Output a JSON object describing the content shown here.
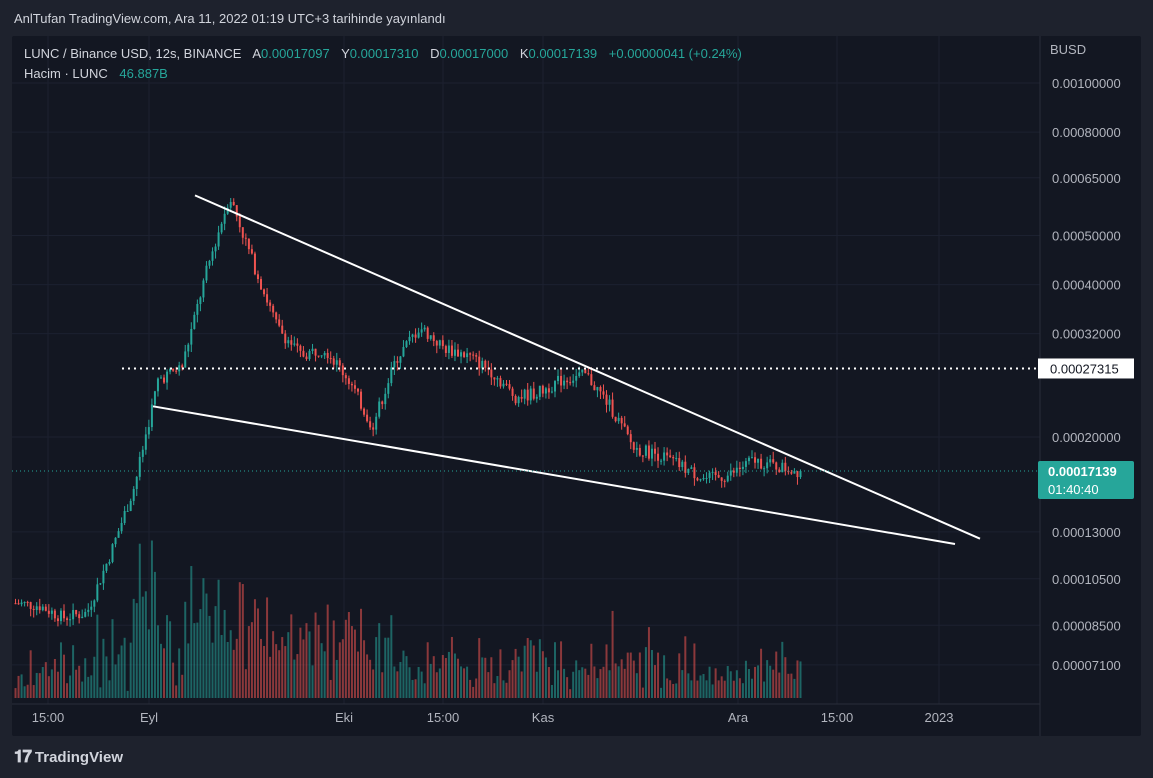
{
  "header": {
    "text": "AnlTufan TradingView.com, Ara 11, 2022 01:19 UTC+3 tarihinde yayınlandı"
  },
  "legend": {
    "symbol": "LUNC / Binance USD, 12s, BINANCE",
    "open_label": "A",
    "open": "0.00017097",
    "high_label": "Y",
    "high": "0.00017310",
    "low_label": "D",
    "low": "0.00017000",
    "close_label": "K",
    "close": "0.00017139",
    "change": "+0.00000041 (+0.24%)",
    "volume_label": "Hacim · LUNC",
    "volume": "46.887B"
  },
  "colors": {
    "up": "#26a69a",
    "down": "#ef5350",
    "background": "#131722",
    "line": "#ffffff"
  },
  "footer": {
    "logo_icon": "tradingview-logo-icon",
    "brand": "TradingView"
  },
  "chart_data": {
    "type": "candlestick",
    "axis_currency": "BUSD",
    "y_ticks": [
      "0.00100000",
      "0.00080000",
      "0.00065000",
      "0.00050000",
      "0.00040000",
      "0.00032000",
      "0.00020000",
      "0.00013000",
      "0.00010500",
      "0.00008500",
      "0.00007100"
    ],
    "y_scale": "log",
    "x_ticks": [
      "15:00",
      "Eyl",
      "Eki",
      "15:00",
      "Kas",
      "Ara",
      "15:00",
      "2023"
    ],
    "horizontal_line_label": "0.00027315",
    "last_price_label": "0.00017139",
    "countdown_label": "01:40:40",
    "close_path": [
      [
        "Ağu",
        9.4e-05
      ],
      [
        "Ağu",
        9.3e-05
      ],
      [
        "Ağu",
        8.8e-05
      ],
      [
        "Ağu",
        9e-05
      ],
      [
        "Eyl",
        0.000118
      ],
      [
        "Eyl",
        0.00016
      ],
      [
        "Eyl",
        0.00026
      ],
      [
        "Eyl",
        0.000275
      ],
      [
        "Eyl",
        0.00042
      ],
      [
        "Eyl",
        0.0006
      ],
      [
        "Eyl",
        0.00044
      ],
      [
        "Eyl",
        0.00033
      ],
      [
        "Eyl",
        0.00029
      ],
      [
        "Eyl",
        0.0003
      ],
      [
        "Eyl",
        0.00026
      ],
      [
        "Eyl",
        0.00021
      ],
      [
        "Eki",
        0.000285
      ],
      [
        "Eki",
        0.00033
      ],
      [
        "Eki",
        0.0003
      ],
      [
        "Eki",
        0.00029
      ],
      [
        "Eki",
        0.00027
      ],
      [
        "Eki",
        0.00024
      ],
      [
        "Eki",
        0.000245
      ],
      [
        "Eki",
        0.00026
      ],
      [
        "Kas",
        0.000265
      ],
      [
        "Kas",
        0.00023
      ],
      [
        "Kas",
        0.00019
      ],
      [
        "Kas",
        0.000185
      ],
      [
        "Kas",
        0.000175
      ],
      [
        "Kas",
        0.000165
      ],
      [
        "Kas",
        0.000168
      ],
      [
        "Ara",
        0.00018
      ],
      [
        "Ara",
        0.000175
      ],
      [
        "Ara",
        0.000171
      ]
    ],
    "trendlines": [
      {
        "name": "upper",
        "from": [
          "Eyl",
          0.0006
        ],
        "to": [
          "2023",
          0.000126
        ]
      },
      {
        "name": "lower",
        "from": [
          "Eyl",
          0.00023
        ],
        "to": [
          "2023",
          0.000123
        ]
      }
    ],
    "grid": true
  }
}
